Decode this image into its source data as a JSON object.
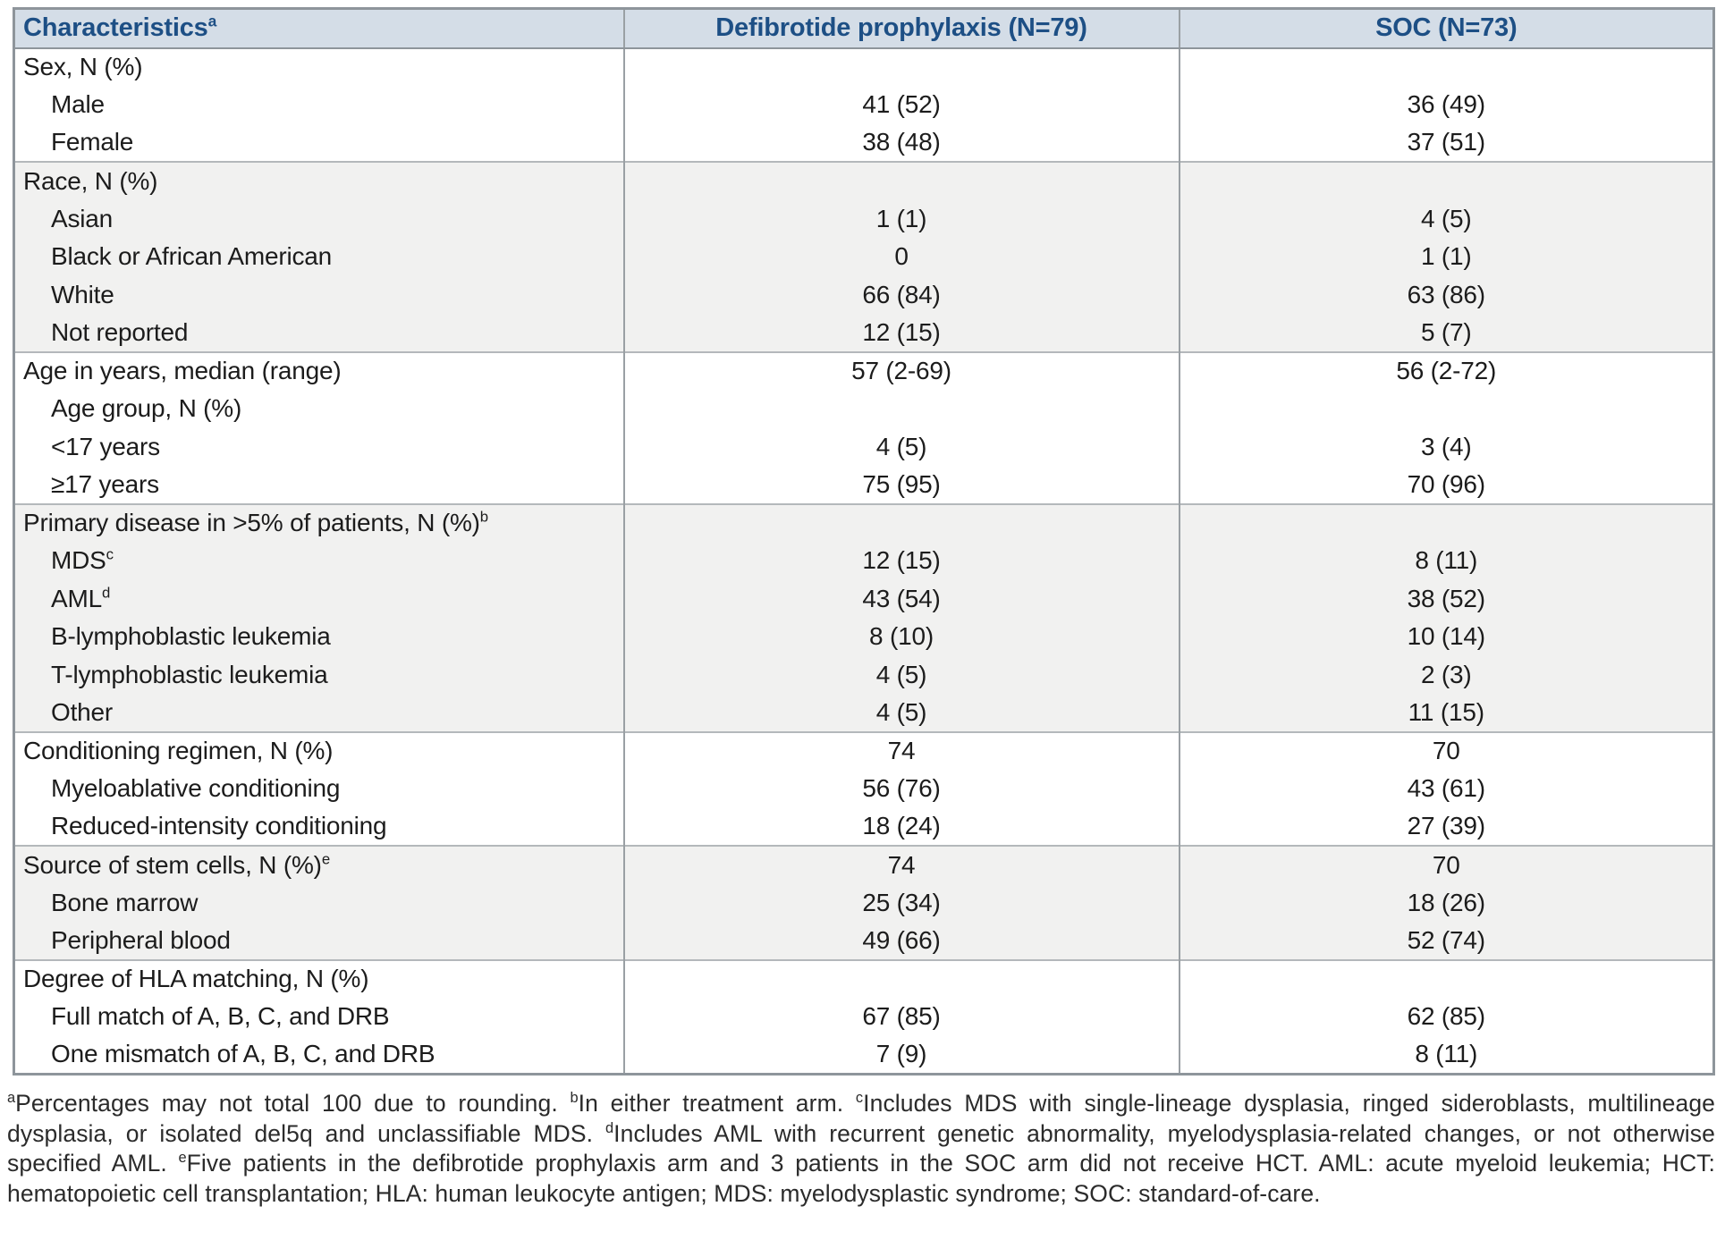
{
  "header": {
    "characteristics_label": "Characteristics",
    "characteristics_sup": "a",
    "defibrotide": "Defibrotide prophylaxis (N=79)",
    "soc": "SOC (N=73)"
  },
  "table": {
    "sections": [
      {
        "shaded": false,
        "rows": [
          {
            "label": "Sex, N (%)",
            "sup": "",
            "indent": false,
            "def": "",
            "soc": ""
          },
          {
            "label": "Male",
            "sup": "",
            "indent": true,
            "def": "41 (52)",
            "soc": "36 (49)"
          },
          {
            "label": "Female",
            "sup": "",
            "indent": true,
            "def": "38 (48)",
            "soc": "37 (51)"
          }
        ]
      },
      {
        "shaded": true,
        "rows": [
          {
            "label": "Race, N (%)",
            "sup": "",
            "indent": false,
            "def": "",
            "soc": ""
          },
          {
            "label": "Asian",
            "sup": "",
            "indent": true,
            "def": "1 (1)",
            "soc": "4 (5)"
          },
          {
            "label": "Black or African American",
            "sup": "",
            "indent": true,
            "def": "0",
            "soc": "1 (1)"
          },
          {
            "label": "White",
            "sup": "",
            "indent": true,
            "def": "66 (84)",
            "soc": "63 (86)"
          },
          {
            "label": "Not reported",
            "sup": "",
            "indent": true,
            "def": "12 (15)",
            "soc": "5 (7)"
          }
        ]
      },
      {
        "shaded": false,
        "rows": [
          {
            "label": "Age in years, median (range)",
            "sup": "",
            "indent": false,
            "def": "57 (2-69)",
            "soc": "56 (2-72)"
          },
          {
            "label": "Age group, N (%)",
            "sup": "",
            "indent": true,
            "def": "",
            "soc": ""
          },
          {
            "label": "<17 years",
            "sup": "",
            "indent": true,
            "def": "4 (5)",
            "soc": "3 (4)"
          },
          {
            "label": "≥17 years",
            "sup": "",
            "indent": true,
            "def": "75 (95)",
            "soc": "70 (96)"
          }
        ]
      },
      {
        "shaded": true,
        "rows": [
          {
            "label": "Primary disease in >5% of patients, N (%)",
            "sup": "b",
            "indent": false,
            "def": "",
            "soc": ""
          },
          {
            "label": "MDS",
            "sup": "c",
            "indent": true,
            "def": "12 (15)",
            "soc": "8 (11)"
          },
          {
            "label": "AML",
            "sup": "d",
            "indent": true,
            "def": "43 (54)",
            "soc": "38 (52)"
          },
          {
            "label": "B-lymphoblastic leukemia",
            "sup": "",
            "indent": true,
            "def": "8 (10)",
            "soc": "10 (14)"
          },
          {
            "label": "T-lymphoblastic leukemia",
            "sup": "",
            "indent": true,
            "def": "4 (5)",
            "soc": "2 (3)"
          },
          {
            "label": "Other",
            "sup": "",
            "indent": true,
            "def": "4 (5)",
            "soc": "11 (15)"
          }
        ]
      },
      {
        "shaded": false,
        "rows": [
          {
            "label": "Conditioning regimen, N (%)",
            "sup": "",
            "indent": false,
            "def": "74",
            "soc": "70"
          },
          {
            "label": "Myeloablative conditioning",
            "sup": "",
            "indent": true,
            "def": "56 (76)",
            "soc": "43 (61)"
          },
          {
            "label": "Reduced-intensity conditioning",
            "sup": "",
            "indent": true,
            "def": "18 (24)",
            "soc": "27 (39)"
          }
        ]
      },
      {
        "shaded": true,
        "rows": [
          {
            "label": "Source of stem cells, N (%)",
            "sup": "e",
            "indent": false,
            "def": "74",
            "soc": "70"
          },
          {
            "label": "Bone marrow",
            "sup": "",
            "indent": true,
            "def": "25 (34)",
            "soc": "18 (26)"
          },
          {
            "label": "Peripheral blood",
            "sup": "",
            "indent": true,
            "def": "49 (66)",
            "soc": "52 (74)"
          }
        ]
      },
      {
        "shaded": false,
        "rows": [
          {
            "label": "Degree of HLA matching, N (%)",
            "sup": "",
            "indent": false,
            "def": "",
            "soc": ""
          },
          {
            "label": "Full match of A, B, C, and DRB",
            "sup": "",
            "indent": true,
            "def": "67 (85)",
            "soc": "62 (85)"
          },
          {
            "label": "One mismatch of A, B, C, and DRB",
            "sup": "",
            "indent": true,
            "def": "7 (9)",
            "soc": "8 (11)"
          }
        ]
      }
    ]
  },
  "footnotes": {
    "segments": [
      {
        "sup": "a",
        "text": "Percentages may not total 100 due to rounding. "
      },
      {
        "sup": "b",
        "text": "In either treatment arm. "
      },
      {
        "sup": "c",
        "text": "Includes MDS with single-lineage dysplasia, ringed sideroblasts, multilineage dysplasia, or isolated del5q and unclassifiable MDS. "
      },
      {
        "sup": "d",
        "text": "Includes AML with recurrent genetic abnormality, myelodysplasia-related changes, or not otherwise specified AML. "
      },
      {
        "sup": "e",
        "text": "Five patients in the defibrotide prophylaxis arm and 3 patients in the SOC arm did not receive HCT. "
      },
      {
        "sup": "",
        "text": "AML: acute myeloid leukemia; HCT: hematopoietic cell transplantation; HLA: human leukocyte antigen; MDS: myelodysplastic syndrome; SOC: standard-of-care."
      }
    ]
  },
  "colors": {
    "header_bg": "#d4dde7",
    "header_text": "#1d4f85",
    "shaded_row_bg": "#f1f1f0",
    "row_bg": "#ffffff",
    "outer_border": "#8e959b",
    "column_divider": "#9aa0a4",
    "section_line": "#b4b8bb",
    "body_text": "#1c1c1c",
    "footnote_text": "#2b2b2b"
  }
}
